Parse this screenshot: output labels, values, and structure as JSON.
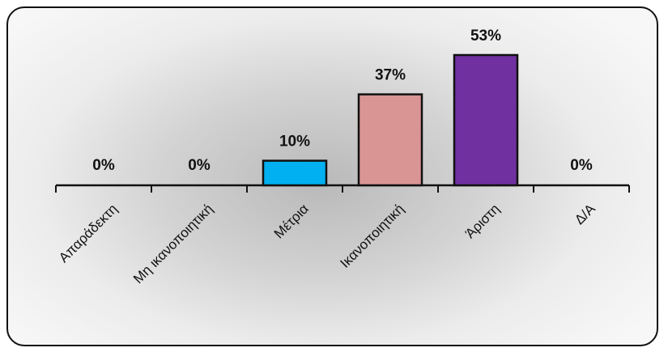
{
  "chart_data": {
    "type": "bar",
    "categories": [
      "Απαράδεκτη",
      "Μη ικανοποιητική",
      "Μέτρια",
      "Ικανοποιητική",
      "Άριστη",
      "Δ/Α"
    ],
    "values": [
      0,
      0,
      10,
      37,
      53,
      0
    ],
    "value_labels": [
      "0%",
      "0%",
      "10%",
      "37%",
      "53%",
      "0%"
    ],
    "colors": [
      "#00b0f0",
      "#00b0f0",
      "#00b0f0",
      "#d99594",
      "#7030a0",
      "#00b0f0"
    ],
    "ylim": [
      0,
      60
    ],
    "grid": false,
    "legend": "none"
  }
}
